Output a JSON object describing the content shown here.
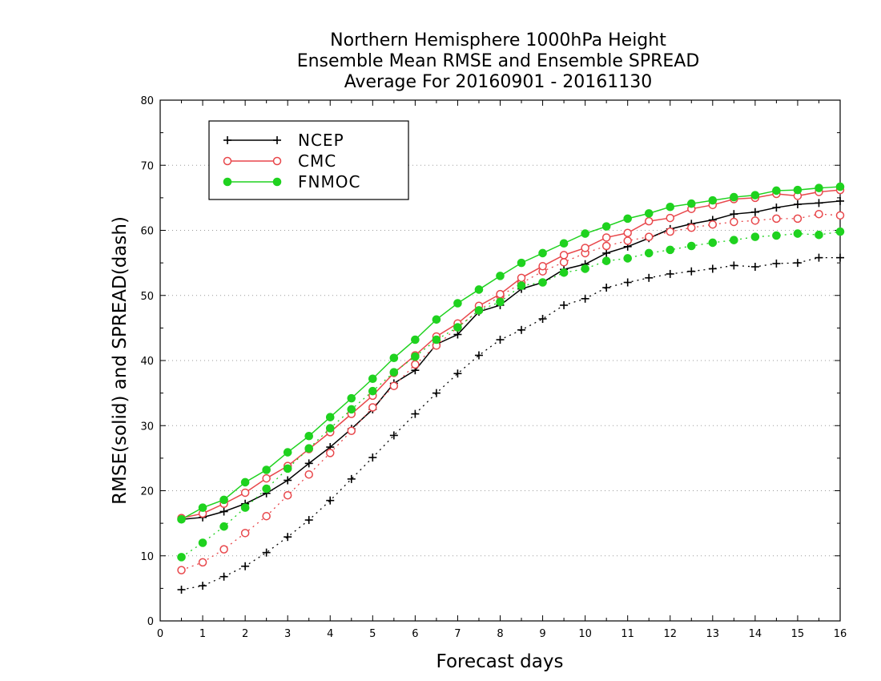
{
  "chart_data": {
    "type": "line",
    "title_lines": [
      "Northern Hemisphere 1000hPa Height",
      "Ensemble Mean RMSE and Ensemble SPREAD",
      "Average For 20160901 - 20161130"
    ],
    "xlabel": "Forecast days",
    "ylabel": "RMSE(solid) and SPREAD(dash)",
    "xlim": [
      0,
      16
    ],
    "ylim": [
      0,
      80
    ],
    "x_ticks": [
      "0",
      "1",
      "2",
      "3",
      "4",
      "5",
      "6",
      "7",
      "8",
      "9",
      "10",
      "11",
      "12",
      "13",
      "14",
      "15",
      "16"
    ],
    "y_ticks": [
      "0",
      "10",
      "20",
      "30",
      "40",
      "50",
      "60",
      "70",
      "80"
    ],
    "grid": "horizontal dotted",
    "legend_position": "top-left",
    "x": [
      0.5,
      1,
      1.5,
      2,
      2.5,
      3,
      3.5,
      4,
      4.5,
      5,
      5.5,
      6,
      6.5,
      7,
      7.5,
      8,
      8.5,
      9,
      9.5,
      10,
      10.5,
      11,
      11.5,
      12,
      12.5,
      13,
      13.5,
      14,
      14.5,
      15,
      15.5,
      16
    ],
    "series": [
      {
        "name": "NCEP",
        "color": "#000000",
        "marker": "plus",
        "rmse": [
          15.6,
          15.9,
          16.8,
          18.0,
          19.6,
          21.6,
          24.2,
          26.7,
          29.5,
          32.5,
          36.5,
          38.5,
          42.5,
          44.0,
          47.5,
          48.5,
          51.0,
          52.0,
          54.0,
          54.8,
          56.5,
          57.5,
          58.8,
          60.2,
          61.0,
          61.6,
          62.5,
          62.8,
          63.5,
          64.0,
          64.2,
          64.5
        ],
        "spread": [
          4.8,
          5.4,
          6.8,
          8.4,
          10.5,
          12.9,
          15.5,
          18.5,
          21.8,
          25.1,
          28.5,
          31.8,
          35.0,
          38.0,
          40.8,
          43.2,
          44.7,
          46.4,
          48.5,
          49.5,
          51.2,
          52.0,
          52.7,
          53.3,
          53.7,
          54.1,
          54.6,
          54.4,
          54.9,
          55.0,
          55.8,
          55.8
        ]
      },
      {
        "name": "CMC",
        "color": "#e8474b",
        "marker": "open-circle",
        "rmse": [
          15.8,
          16.5,
          18.0,
          19.7,
          21.9,
          23.8,
          26.4,
          29.0,
          31.8,
          34.6,
          38.1,
          40.8,
          43.7,
          45.7,
          48.4,
          50.2,
          52.7,
          54.5,
          56.2,
          57.3,
          58.9,
          59.6,
          61.4,
          61.9,
          63.3,
          63.9,
          64.8,
          65.0,
          65.6,
          65.3,
          65.9,
          66.2
        ],
        "spread": [
          7.8,
          9.0,
          11.0,
          13.5,
          16.1,
          19.3,
          22.5,
          25.8,
          29.2,
          32.8,
          36.1,
          39.4,
          42.3,
          45.1,
          47.7,
          49.9,
          51.9,
          53.7,
          55.1,
          56.5,
          57.6,
          58.4,
          59.0,
          59.8,
          60.4,
          60.9,
          61.3,
          61.5,
          61.8,
          61.8,
          62.5,
          62.3
        ]
      },
      {
        "name": "FNMOC",
        "color": "#1fd21f",
        "marker": "filled-circle",
        "rmse": [
          15.6,
          17.4,
          18.6,
          21.3,
          23.2,
          25.9,
          28.4,
          31.3,
          34.2,
          37.2,
          40.4,
          43.2,
          46.3,
          48.8,
          50.9,
          53.0,
          55.0,
          56.5,
          58.0,
          59.5,
          60.6,
          61.8,
          62.6,
          63.6,
          64.1,
          64.6,
          65.1,
          65.4,
          66.1,
          66.2,
          66.5,
          66.7
        ],
        "spread": [
          9.8,
          12.0,
          14.5,
          17.4,
          20.3,
          23.4,
          26.5,
          29.6,
          32.5,
          35.3,
          38.2,
          40.6,
          43.2,
          45.1,
          47.7,
          49.0,
          51.5,
          52.0,
          53.5,
          54.1,
          55.3,
          55.7,
          56.5,
          57.0,
          57.6,
          58.1,
          58.5,
          59.0,
          59.2,
          59.5,
          59.3,
          59.8
        ]
      }
    ]
  }
}
